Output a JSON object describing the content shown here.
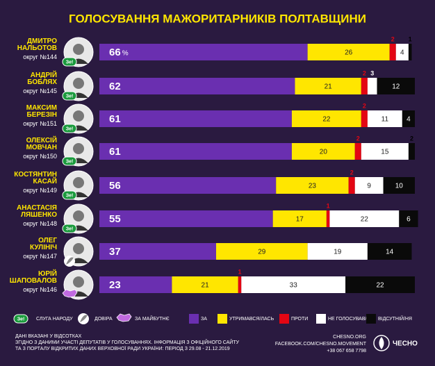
{
  "chart_data": {
    "type": "stacked_bar",
    "title": "ГОЛОСУВАННЯ МАЖОРИТАРНИКІВ ПОЛТАВЩИНИ",
    "categories": [
      "ДМИТРО\nНАЛЬОТОВ",
      "АНДРІЙ\nБОБЛЯХ",
      "МАКСИМ\nБЕРЕЗІН",
      "ОЛЕКСІЙ\nМОВЧАН",
      "КОСТЯНТИН\nКАСАЙ",
      "АНАСТАСІЯ\nЛЯШЕНКО",
      "ОЛЕГ\nКУЛІНІЧ",
      "ЮРІЙ\nШАПОВАЛОВ"
    ],
    "districts": [
      "округ №144",
      "округ №145",
      "округ №151",
      "округ №150",
      "округ №149",
      "округ №148",
      "округ №147",
      "округ №146"
    ],
    "candidate_party": [
      0,
      0,
      0,
      0,
      0,
      0,
      1,
      2
    ],
    "parties": [
      {
        "name": "СЛУГА НАРОДУ",
        "badge": "Зе!"
      },
      {
        "name": "ДОВІРА"
      },
      {
        "name": "ЗА МАЙБУТНЄ"
      }
    ],
    "unit_label": "%",
    "xlim": [
      0,
      100
    ],
    "series": [
      {
        "name": "ЗА",
        "color": "#6a2fb0",
        "values": [
          66,
          62,
          61,
          61,
          56,
          55,
          37,
          23
        ]
      },
      {
        "name": "УТРИМАВСЯ/ЛАСЬ",
        "color": "#ffe600",
        "values": [
          26,
          21,
          22,
          20,
          23,
          17,
          29,
          21
        ]
      },
      {
        "name": "ПРОТИ",
        "color": "#e30613",
        "values": [
          2,
          2,
          2,
          2,
          2,
          1,
          null,
          1
        ]
      },
      {
        "name": "НЕ ГОЛОСУВАВ/ЛА",
        "color": "#ffffff",
        "values": [
          4,
          3,
          11,
          15,
          9,
          22,
          19,
          33
        ]
      },
      {
        "name": "ВІДСУТНІЙ/НЯ",
        "color": "#0a0a0a",
        "values": [
          1,
          12,
          4,
          2,
          10,
          6,
          14,
          22
        ]
      }
    ],
    "notes": [
      "ДАНІ ВКАЗАНІ У ВІДСОТКАХ",
      "ЗГІДНО З ДАНИМИ УЧАСТІ ДЕПУТАТІВ У ГОЛОСУВАННЯХ. ІНФОРМАЦІЯ З ОФІЦІЙНОГО САЙТУ",
      "ТА З ПОРТАЛУ ВІДКРИТИХ ДАНИХ ВЕРХОВНОЇ РАДИ УКРАЇНИ: ПЕРІОД З 29.08 - 21.12.2019"
    ],
    "contacts": [
      "CHESNO.ORG",
      "FACEBOOK.COM/CHESNO.MOVEMENT",
      "+38 067 658 7798"
    ],
    "logo": "ЧЕСНО"
  }
}
